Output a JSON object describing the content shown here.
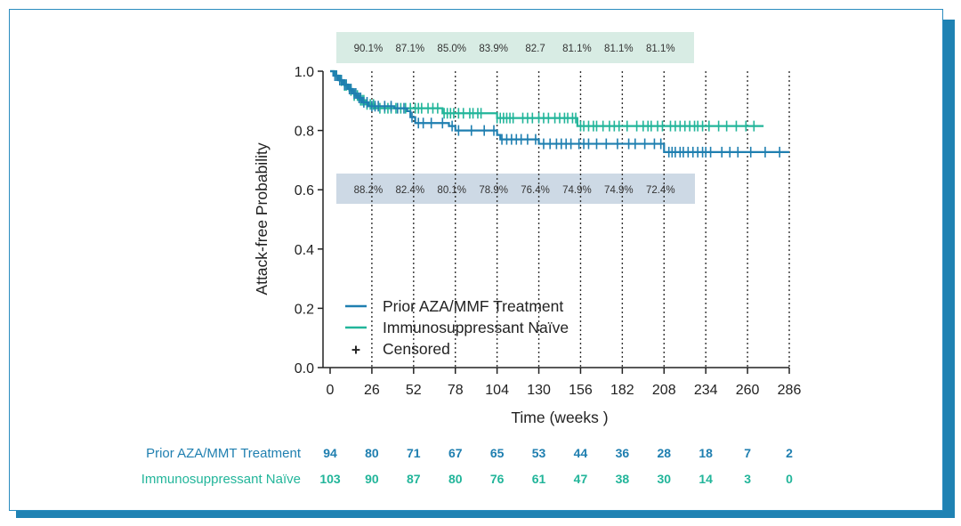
{
  "chart_data": {
    "type": "line",
    "subtype": "kaplan-meier",
    "xlabel": "Time (weeks )",
    "ylabel": "Attack-free Probability",
    "xlim": [
      0,
      286
    ],
    "ylim": [
      0.0,
      1.0
    ],
    "x_ticks": [
      "0",
      "26",
      "52",
      "78",
      "104",
      "130",
      "156",
      "182",
      "208",
      "234",
      "260",
      "286"
    ],
    "y_ticks": [
      "0.0",
      "0.2",
      "0.4",
      "0.6",
      "0.8",
      "1.0"
    ],
    "reference_lines_x": [
      26,
      52,
      78,
      104,
      130,
      156,
      182,
      208,
      234,
      260,
      286
    ],
    "series": [
      {
        "name": "Prior AZA/MMF Treatment",
        "color": "#1f7fb0",
        "steps": [
          [
            0,
            1.0
          ],
          [
            2,
            0.985
          ],
          [
            5,
            0.97
          ],
          [
            8,
            0.955
          ],
          [
            11,
            0.94
          ],
          [
            14,
            0.925
          ],
          [
            17,
            0.91
          ],
          [
            20,
            0.895
          ],
          [
            24,
            0.882
          ],
          [
            40,
            0.875
          ],
          [
            48,
            0.865
          ],
          [
            50,
            0.845
          ],
          [
            53,
            0.825
          ],
          [
            74,
            0.815
          ],
          [
            78,
            0.8
          ],
          [
            104,
            0.785
          ],
          [
            106,
            0.77
          ],
          [
            130,
            0.755
          ],
          [
            208,
            0.727
          ],
          [
            286,
            0.727
          ]
        ],
        "censored_x": [
          3,
          4,
          6,
          7,
          9,
          10,
          12,
          13,
          15,
          16,
          18,
          19,
          21,
          23,
          26,
          28,
          30,
          34,
          38,
          42,
          46,
          51,
          55,
          58,
          63,
          70,
          76,
          80,
          88,
          96,
          102,
          107,
          110,
          113,
          116,
          119,
          123,
          128,
          133,
          137,
          141,
          144,
          147,
          150,
          155,
          158,
          161,
          166,
          172,
          179,
          186,
          190,
          196,
          202,
          206,
          211,
          213,
          215,
          218,
          220,
          223,
          226,
          229,
          232,
          234,
          237,
          244,
          249,
          254,
          262,
          271,
          280
        ]
      },
      {
        "name": "Immunosuppressant Naïve",
        "color": "#22b59a",
        "steps": [
          [
            0,
            1.0
          ],
          [
            3,
            0.985
          ],
          [
            6,
            0.968
          ],
          [
            9,
            0.952
          ],
          [
            12,
            0.935
          ],
          [
            15,
            0.918
          ],
          [
            18,
            0.902
          ],
          [
            22,
            0.888
          ],
          [
            28,
            0.875
          ],
          [
            70,
            0.858
          ],
          [
            104,
            0.842
          ],
          [
            154,
            0.815
          ],
          [
            270,
            0.815
          ]
        ],
        "censored_x": [
          4,
          7,
          9,
          10,
          13,
          15,
          17,
          19,
          20,
          21,
          23,
          25,
          27,
          31,
          34,
          36,
          38,
          41,
          44,
          47,
          50,
          53,
          55,
          57,
          61,
          64,
          67,
          71,
          73,
          75,
          77,
          80,
          83,
          87,
          89,
          92,
          94,
          104,
          106,
          108,
          110,
          112,
          114,
          120,
          123,
          126,
          130,
          133,
          136,
          140,
          143,
          146,
          148,
          151,
          153,
          156,
          158,
          161,
          164,
          166,
          170,
          174,
          177,
          180,
          185,
          191,
          195,
          198,
          200,
          204,
          207,
          212,
          215,
          218,
          221,
          224,
          227,
          229,
          232,
          236,
          242,
          247,
          253,
          259,
          264
        ]
      }
    ],
    "legend": [
      "Prior AZA/MMF Treatment",
      "Immunosuppressant Naïve",
      "Censored"
    ],
    "legend_censored_symbol": "+",
    "naive_percentages": [
      "90.1%",
      "87.1%",
      "85.0%",
      "83.9%",
      "82.7",
      "81.1%",
      "81.1%",
      "81.1%"
    ],
    "prior_percentages": [
      "88.2%",
      "82.4%",
      "80.1%",
      "78.9%",
      "76.4%",
      "74.9%",
      "74.9%",
      "72.4%"
    ],
    "risk_table": {
      "rows": [
        {
          "label": "Prior AZA/MMT Treatment",
          "color": "#1f7fb0",
          "values": [
            "94",
            "80",
            "71",
            "67",
            "65",
            "53",
            "44",
            "36",
            "28",
            "18",
            "7",
            "2"
          ]
        },
        {
          "label": "Immunosuppressant Naïve",
          "color": "#22b59a",
          "values": [
            "103",
            "90",
            "87",
            "80",
            "76",
            "61",
            "47",
            "38",
            "30",
            "14",
            "3",
            "0"
          ]
        }
      ]
    },
    "naive_box_color": "#d8ece4",
    "prior_box_color": "#cdd9e5"
  }
}
